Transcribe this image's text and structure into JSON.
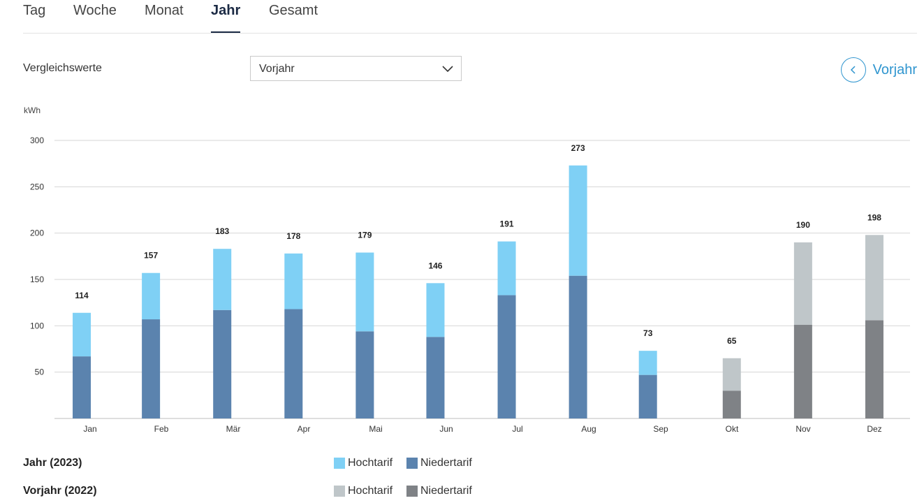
{
  "tabs": [
    {
      "label": "Tag",
      "active": false
    },
    {
      "label": "Woche",
      "active": false
    },
    {
      "label": "Monat",
      "active": false
    },
    {
      "label": "Jahr",
      "active": true
    },
    {
      "label": "Gesamt",
      "active": false
    }
  ],
  "compare": {
    "label": "Vergleichswerte",
    "selected": "Vorjahr",
    "prev_button_label": "Vorjahr"
  },
  "legend": {
    "current_title": "Jahr (2023)",
    "previous_title": "Vorjahr (2022)",
    "hoch_label": "Hochtarif",
    "nieder_label": "Niedertarif"
  },
  "colors": {
    "current_hoch": "#7fd0f5",
    "current_nieder": "#5b83ae",
    "previous_hoch": "#bfc6c9",
    "previous_nieder": "#7f8286",
    "accent": "#2f95cf"
  },
  "chart_data": {
    "type": "bar",
    "stacked": true,
    "unit": "kWh",
    "ylim": [
      0,
      300
    ],
    "yticks": [
      50,
      100,
      150,
      200,
      250,
      300
    ],
    "grid": true,
    "categories": [
      "Jan",
      "Feb",
      "Mär",
      "Apr",
      "Mai",
      "Jun",
      "Jul",
      "Aug",
      "Sep",
      "Okt",
      "Nov",
      "Dez"
    ],
    "bars": [
      {
        "category": "Jan",
        "period": "current",
        "nieder": 67,
        "hoch": 47,
        "total": "114"
      },
      {
        "category": "Feb",
        "period": "current",
        "nieder": 107,
        "hoch": 50,
        "total": "157"
      },
      {
        "category": "Mär",
        "period": "current",
        "nieder": 117,
        "hoch": 66,
        "total": "183"
      },
      {
        "category": "Apr",
        "period": "current",
        "nieder": 118,
        "hoch": 60,
        "total": "178"
      },
      {
        "category": "Mai",
        "period": "current",
        "nieder": 94,
        "hoch": 85,
        "total": "179"
      },
      {
        "category": "Jun",
        "period": "current",
        "nieder": 88,
        "hoch": 58,
        "total": "146"
      },
      {
        "category": "Jul",
        "period": "current",
        "nieder": 133,
        "hoch": 58,
        "total": "191"
      },
      {
        "category": "Aug",
        "period": "current",
        "nieder": 154,
        "hoch": 119,
        "total": "273"
      },
      {
        "category": "Sep",
        "period": "current",
        "nieder": 47,
        "hoch": 26,
        "total": "73"
      },
      {
        "category": "Okt",
        "period": "previous",
        "nieder": 30,
        "hoch": 35,
        "total": "65"
      },
      {
        "category": "Nov",
        "period": "previous",
        "nieder": 101,
        "hoch": 89,
        "total": "190"
      },
      {
        "category": "Dez",
        "period": "previous",
        "nieder": 106,
        "hoch": 92,
        "total": "198"
      }
    ]
  }
}
